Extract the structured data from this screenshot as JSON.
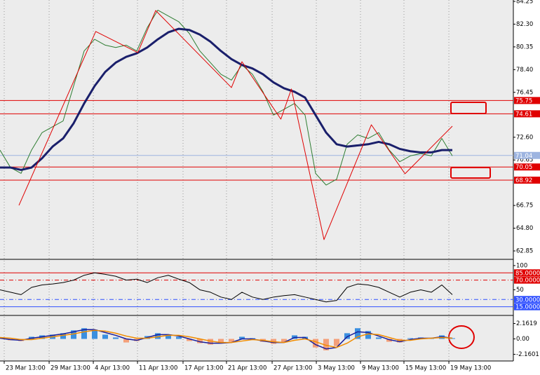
{
  "chart_data": [
    {
      "type": "line",
      "ylim": [
        62.85,
        84.25
      ],
      "yticks": [
        {
          "value": 84.25,
          "label": "84.25"
        },
        {
          "value": 82.3,
          "label": "82.30"
        },
        {
          "value": 80.35,
          "label": "80.35"
        },
        {
          "value": 78.4,
          "label": "78.40"
        },
        {
          "value": 76.45,
          "label": "76.45"
        },
        {
          "value": 72.6,
          "label": "72.60"
        },
        {
          "value": 70.65,
          "label": "70.65"
        },
        {
          "value": 66.75,
          "label": "66.75"
        },
        {
          "value": 64.8,
          "label": "64.80"
        },
        {
          "value": 62.85,
          "label": "62.85"
        }
      ],
      "xlim": [
        0,
        48.8
      ],
      "x": [
        0,
        1,
        2,
        3,
        4,
        5,
        6,
        7,
        8,
        9,
        10,
        11,
        12,
        13,
        14,
        15,
        16,
        17,
        18,
        19,
        20,
        21,
        22,
        23,
        24,
        25,
        26,
        27,
        28,
        29,
        30,
        31,
        32,
        33,
        34,
        35,
        36,
        37,
        38,
        39,
        40,
        41,
        42,
        43
      ],
      "series": [
        {
          "color": "#2e7d32",
          "width": 1,
          "values": [
            71.5,
            70.0,
            69.5,
            71.5,
            73.0,
            73.5,
            74.0,
            77.0,
            80.0,
            81.0,
            80.5,
            80.3,
            80.5,
            80.0,
            82.0,
            83.5,
            83.0,
            82.5,
            81.5,
            80.0,
            79.0,
            78.0,
            77.5,
            78.8,
            78.0,
            76.5,
            74.5,
            75.0,
            75.5,
            74.5,
            69.5,
            68.5,
            69.0,
            72.0,
            72.8,
            72.5,
            73.0,
            71.5,
            70.5,
            71.0,
            71.2,
            71.0,
            72.5,
            71.0
          ]
        },
        {
          "color": "#1a1f6b",
          "width": 3,
          "values": [
            70.0,
            70.0,
            69.8,
            70.0,
            70.8,
            71.8,
            72.5,
            73.8,
            75.5,
            77.0,
            78.2,
            79.0,
            79.5,
            79.8,
            80.3,
            81.0,
            81.6,
            81.9,
            81.8,
            81.4,
            80.8,
            80.0,
            79.3,
            78.8,
            78.5,
            78.0,
            77.3,
            76.8,
            76.5,
            76.0,
            74.5,
            73.0,
            72.0,
            71.8,
            71.9,
            72.0,
            72.2,
            72.0,
            71.6,
            71.4,
            71.3,
            71.3,
            71.5,
            71.5
          ]
        },
        {
          "color": "#e00000",
          "width": 1,
          "x": [
            1.8,
            9.1,
            13.1,
            14.8,
            22,
            23,
            26.7,
            27.7,
            30.8,
            35.3,
            38.5,
            43
          ],
          "values": [
            66.76,
            81.67,
            79.86,
            83.47,
            76.86,
            79.08,
            74.15,
            76.74,
            63.82,
            73.67,
            69.47,
            73.55
          ]
        }
      ],
      "levels": [
        {
          "value": 75.75,
          "label": "75.75",
          "color": "#e00000"
        },
        {
          "value": 74.61,
          "label": "74.61",
          "color": "#e00000"
        },
        {
          "value": 71.04,
          "label": "71.04",
          "color": "#9db4e0"
        },
        {
          "value": 70.05,
          "label": "70.05",
          "color": "#e00000"
        },
        {
          "value": 68.92,
          "label": "68.92",
          "color": "#e00000"
        }
      ]
    },
    {
      "type": "line",
      "ylim": [
        0,
        110
      ],
      "yticks": [
        100,
        50
      ],
      "xlim": [
        0,
        48.8
      ],
      "x": [
        0,
        1,
        2,
        3,
        4,
        5,
        6,
        7,
        8,
        9,
        10,
        11,
        12,
        13,
        14,
        15,
        16,
        17,
        18,
        19,
        20,
        21,
        22,
        23,
        24,
        25,
        26,
        27,
        28,
        29,
        30,
        31,
        32,
        33,
        34,
        35,
        36,
        37,
        38,
        39,
        40,
        41,
        42,
        43
      ],
      "series": [
        {
          "color": "#000000",
          "width": 1,
          "values": [
            50,
            45,
            40,
            55,
            60,
            62,
            65,
            70,
            80,
            85,
            82,
            78,
            70,
            72,
            65,
            75,
            80,
            72,
            65,
            50,
            45,
            35,
            30,
            45,
            35,
            30,
            35,
            38,
            40,
            35,
            30,
            25,
            28,
            55,
            62,
            60,
            55,
            45,
            35,
            45,
            50,
            45,
            60,
            40
          ]
        }
      ],
      "levels": [
        {
          "value": 85,
          "label": "85.0000",
          "color": "#e00000"
        },
        {
          "value": 70,
          "label": "70.0000",
          "color": "#e00000"
        },
        {
          "value": 30,
          "label": "30.0000",
          "color": "#3050ff"
        },
        {
          "value": 15,
          "label": "15.0000",
          "color": "#3050ff"
        }
      ]
    },
    {
      "type": "histogram",
      "ylim": [
        -3.0,
        3.1
      ],
      "yticks": [
        {
          "value": 2.1619,
          "label": "2.1619"
        },
        {
          "value": 0,
          "label": "0.00"
        },
        {
          "value": -2.1601,
          "label": "-2.1601"
        }
      ],
      "xlim": [
        0,
        48.8
      ],
      "xticks": [
        {
          "value": 0.4,
          "label": "23 Mar 13:00"
        },
        {
          "value": 4.67,
          "label": "29 Mar 13:00"
        },
        {
          "value": 8.87,
          "label": "4 Apr 13:00"
        },
        {
          "value": 13.07,
          "label": "11 Apr 13:00"
        },
        {
          "value": 17.4,
          "label": "17 Apr 13:00"
        },
        {
          "value": 21.53,
          "label": "21 Apr 13:00"
        },
        {
          "value": 25.87,
          "label": "27 Apr 13:00"
        },
        {
          "value": 30.07,
          "label": "3 May 13:00"
        },
        {
          "value": 34.27,
          "label": "9 May 13:00"
        },
        {
          "value": 38.4,
          "label": "15 May 13:00"
        },
        {
          "value": 42.67,
          "label": "19 May 13:00"
        }
      ],
      "x": [
        0,
        1,
        2,
        3,
        4,
        5,
        6,
        7,
        8,
        9,
        10,
        11,
        12,
        13,
        14,
        15,
        16,
        17,
        18,
        19,
        20,
        21,
        22,
        23,
        24,
        25,
        26,
        27,
        28,
        29,
        30,
        31,
        32,
        33,
        34,
        35,
        36,
        37,
        38,
        39,
        40,
        41,
        42,
        43
      ],
      "values": [
        0,
        -0.2,
        -0.3,
        0.3,
        0.5,
        0.6,
        0.8,
        1.2,
        1.5,
        1.3,
        0.6,
        0.2,
        -0.5,
        -0.3,
        0.4,
        0.8,
        0.6,
        0.3,
        -0.3,
        -0.6,
        -0.8,
        -0.6,
        -0.4,
        0.3,
        0.1,
        -0.4,
        -0.7,
        -0.5,
        0.5,
        0.3,
        -1.2,
        -1.6,
        -1.0,
        0.8,
        1.5,
        1.1,
        0.2,
        -0.4,
        -0.5,
        0.1,
        0.2,
        0.1,
        0.5,
        0.1
      ],
      "positive_color": "#3a8fe0",
      "negative_color": "#f4a07a",
      "series": [
        {
          "color": "#1a1f9b",
          "width": 1.5,
          "values": [
            0.1,
            -0.1,
            -0.2,
            0.1,
            0.3,
            0.5,
            0.7,
            1.0,
            1.3,
            1.3,
            0.9,
            0.5,
            0.0,
            -0.2,
            0.2,
            0.6,
            0.6,
            0.4,
            0.0,
            -0.4,
            -0.6,
            -0.6,
            -0.5,
            0.0,
            0.0,
            -0.3,
            -0.5,
            -0.5,
            0.2,
            0.2,
            -0.8,
            -1.4,
            -1.2,
            0.3,
            1.0,
            0.9,
            0.4,
            -0.1,
            -0.4,
            -0.1,
            0.1,
            0.1,
            0.3,
            0.1
          ]
        },
        {
          "color": "#f08c00",
          "width": 1.5,
          "values": [
            0.2,
            0.1,
            -0.1,
            -0.1,
            0.1,
            0.3,
            0.5,
            0.7,
            1.0,
            1.2,
            1.1,
            0.8,
            0.4,
            0.1,
            0.1,
            0.3,
            0.5,
            0.5,
            0.3,
            0.0,
            -0.3,
            -0.5,
            -0.5,
            -0.3,
            -0.1,
            -0.2,
            -0.4,
            -0.5,
            -0.2,
            0.0,
            -0.4,
            -0.9,
            -1.2,
            -0.6,
            0.3,
            0.7,
            0.6,
            0.2,
            -0.2,
            -0.2,
            0.0,
            0.1,
            0.2,
            0.1
          ]
        }
      ]
    }
  ]
}
